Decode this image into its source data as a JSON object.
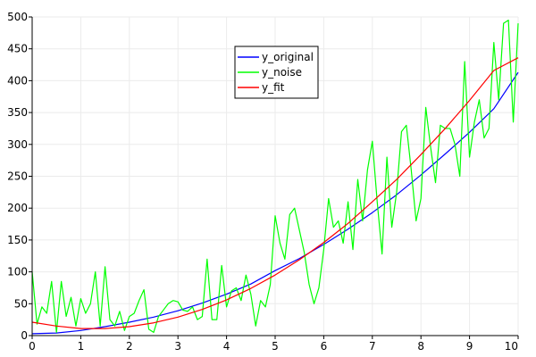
{
  "chart_data": {
    "type": "line",
    "title": "",
    "xlabel": "",
    "ylabel": "",
    "xlim": [
      0,
      10
    ],
    "ylim": [
      0,
      500
    ],
    "x_ticks": [
      0,
      1,
      2,
      3,
      4,
      5,
      6,
      7,
      8,
      9,
      10
    ],
    "y_ticks": [
      0,
      50,
      100,
      150,
      200,
      250,
      300,
      350,
      400,
      450,
      500
    ],
    "grid": true,
    "legend_position": "top-center",
    "series": [
      {
        "name": "y_original",
        "color": "#0000ff",
        "x": [
          0,
          0.5,
          1,
          1.5,
          2,
          2.5,
          3,
          3.5,
          4,
          4.5,
          5,
          5.5,
          6,
          6.5,
          7,
          7.5,
          8,
          8.5,
          9,
          9.5,
          10
        ],
        "y": [
          3,
          4,
          8,
          14,
          21,
          29,
          39,
          51,
          65,
          81,
          102,
          121,
          143,
          167,
          193,
          221,
          252,
          285,
          319,
          356,
          413
        ]
      },
      {
        "name": "y_noise",
        "color": "#00ff00",
        "x": [
          0,
          0.1,
          0.2,
          0.3,
          0.4,
          0.5,
          0.6,
          0.7,
          0.8,
          0.9,
          1.0,
          1.1,
          1.2,
          1.3,
          1.4,
          1.5,
          1.6,
          1.7,
          1.8,
          1.9,
          2.0,
          2.1,
          2.2,
          2.3,
          2.4,
          2.5,
          2.6,
          2.7,
          2.8,
          2.9,
          3.0,
          3.1,
          3.2,
          3.3,
          3.4,
          3.5,
          3.6,
          3.7,
          3.8,
          3.9,
          4.0,
          4.1,
          4.2,
          4.3,
          4.4,
          4.5,
          4.6,
          4.7,
          4.8,
          4.9,
          5.0,
          5.1,
          5.2,
          5.3,
          5.4,
          5.5,
          5.6,
          5.7,
          5.8,
          5.9,
          6.0,
          6.1,
          6.2,
          6.3,
          6.4,
          6.5,
          6.6,
          6.7,
          6.8,
          6.9,
          7.0,
          7.1,
          7.2,
          7.3,
          7.4,
          7.5,
          7.6,
          7.7,
          7.8,
          7.9,
          8.0,
          8.1,
          8.2,
          8.3,
          8.4,
          8.5,
          8.6,
          8.7,
          8.8,
          8.9,
          9.0,
          9.1,
          9.2,
          9.3,
          9.4,
          9.5,
          9.6,
          9.7,
          9.8,
          9.9,
          10.0
        ],
        "y": [
          100,
          18,
          45,
          35,
          85,
          5,
          85,
          30,
          60,
          15,
          58,
          35,
          50,
          100,
          15,
          108,
          25,
          15,
          38,
          8,
          30,
          35,
          55,
          72,
          10,
          5,
          30,
          40,
          50,
          55,
          53,
          40,
          38,
          45,
          25,
          30,
          120,
          25,
          25,
          110,
          45,
          70,
          75,
          55,
          95,
          65,
          15,
          55,
          45,
          80,
          188,
          145,
          120,
          190,
          200,
          165,
          130,
          80,
          50,
          75,
          135,
          215,
          170,
          180,
          145,
          210,
          135,
          245,
          180,
          260,
          305,
          210,
          128,
          280,
          170,
          225,
          320,
          330,
          260,
          180,
          215,
          358,
          295,
          240,
          330,
          325,
          325,
          300,
          250,
          430,
          280,
          335,
          370,
          310,
          325,
          460,
          370,
          490,
          495,
          335,
          490
        ]
      },
      {
        "name": "y_fit",
        "color": "#ff0000",
        "x": [
          0,
          0.5,
          1,
          1.5,
          2,
          2.5,
          3,
          3.5,
          4,
          4.5,
          5,
          5.5,
          6,
          6.5,
          7,
          7.5,
          8,
          8.5,
          9,
          9.5,
          10
        ],
        "y": [
          21,
          15,
          11,
          11,
          14,
          20,
          29,
          41,
          56,
          74,
          95,
          119,
          146,
          176,
          210,
          245,
          284,
          325,
          369,
          416,
          436
        ]
      }
    ]
  }
}
